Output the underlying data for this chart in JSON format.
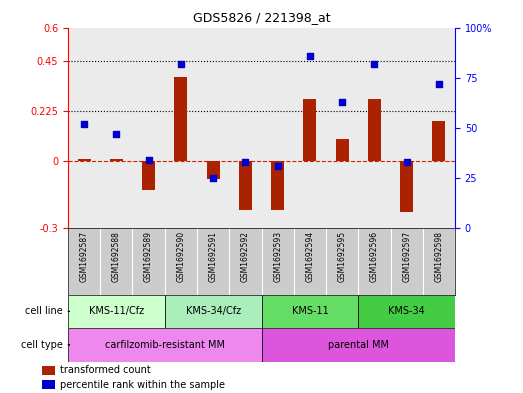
{
  "title": "GDS5826 / 221398_at",
  "samples": [
    "GSM1692587",
    "GSM1692588",
    "GSM1692589",
    "GSM1692590",
    "GSM1692591",
    "GSM1692592",
    "GSM1692593",
    "GSM1692594",
    "GSM1692595",
    "GSM1692596",
    "GSM1692597",
    "GSM1692598"
  ],
  "transformed_count": [
    0.01,
    0.01,
    -0.13,
    0.38,
    -0.08,
    -0.22,
    -0.22,
    0.28,
    0.1,
    0.28,
    -0.23,
    0.18
  ],
  "percentile_rank": [
    52,
    47,
    34,
    82,
    25,
    33,
    31,
    86,
    63,
    82,
    33,
    72
  ],
  "ylim_left": [
    -0.3,
    0.6
  ],
  "ylim_right": [
    0,
    100
  ],
  "yticks_left": [
    -0.3,
    0.0,
    0.225,
    0.45,
    0.6
  ],
  "yticks_right": [
    0,
    25,
    50,
    75,
    100
  ],
  "hlines": [
    0.225,
    0.45
  ],
  "cell_line_groups": [
    {
      "label": "KMS-11/Cfz",
      "start": 0,
      "end": 3,
      "color": "#ccffcc"
    },
    {
      "label": "KMS-34/Cfz",
      "start": 3,
      "end": 6,
      "color": "#aaeebb"
    },
    {
      "label": "KMS-11",
      "start": 6,
      "end": 9,
      "color": "#66dd66"
    },
    {
      "label": "KMS-34",
      "start": 9,
      "end": 12,
      "color": "#44cc44"
    }
  ],
  "cell_type_groups": [
    {
      "label": "carfilzomib-resistant MM",
      "start": 0,
      "end": 6,
      "color": "#ee88ee"
    },
    {
      "label": "parental MM",
      "start": 6,
      "end": 12,
      "color": "#dd55dd"
    }
  ],
  "bar_color": "#aa2200",
  "dot_color": "#0000cc",
  "bar_width": 0.4,
  "dot_size": 25,
  "plot_bg_color": "#ebebeb",
  "zero_line_color": "#cc2200",
  "sample_box_color": "#cccccc",
  "legend_items": [
    {
      "label": "transformed count",
      "color": "#aa2200"
    },
    {
      "label": "percentile rank within the sample",
      "color": "#0000cc"
    }
  ]
}
